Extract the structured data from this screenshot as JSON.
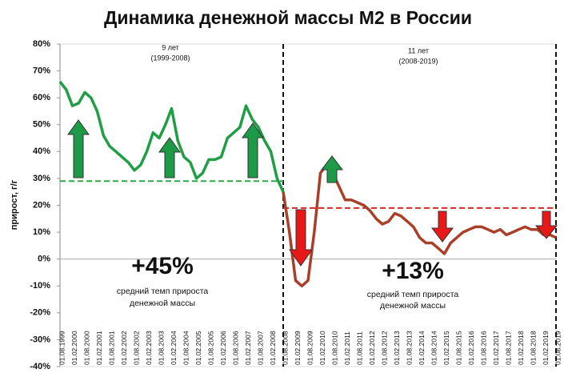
{
  "chart_data": {
    "type": "line",
    "title": "Динамика денежной массы M2 в России",
    "y_label": "прирост, г/г",
    "categories": [
      "01.08.1999",
      null,
      "01.02.2000",
      null,
      "01.08.2000",
      null,
      "01.02.2001",
      null,
      "01.08.2001",
      null,
      "01.02.2002",
      null,
      "01.08.2002",
      null,
      "01.02.2003",
      null,
      "01.08.2003",
      null,
      "01.02.2004",
      null,
      "01.08.2004",
      null,
      "01.02.2005",
      null,
      "01.08.2005",
      null,
      "01.02.2006",
      null,
      "01.08.2006",
      null,
      "01.02.2007",
      null,
      "01.08.2007",
      null,
      "01.02.2008",
      null,
      "01.08.2008",
      null,
      "01.02.2009",
      null,
      "01.08.2009",
      null,
      "01.02.2010",
      null,
      "01.08.2010",
      null,
      "01.02.2011",
      null,
      "01.08.2011",
      null,
      "01.02.2012",
      null,
      "01.08.2012",
      null,
      "01.02.2013",
      null,
      "01.08.2013",
      null,
      "01.02.2014",
      null,
      "01.08.2014",
      null,
      "01.02.2015",
      null,
      "01.08.2015",
      null,
      "01.02.2016",
      null,
      "01.08.2016",
      null,
      "01.02.2017",
      null,
      "01.08.2017",
      null,
      "01.02.2018",
      null,
      "01.08.2018",
      null,
      "01.02.2019",
      null,
      "01.08.2019"
    ],
    "series": [
      {
        "color": "#1f9e45",
        "values": [
          66,
          63,
          57,
          58,
          62,
          60,
          55,
          46,
          42,
          40,
          38,
          36,
          33,
          35,
          40,
          47,
          45,
          50,
          56,
          44,
          38,
          36,
          30,
          32,
          37,
          37,
          38,
          45,
          47,
          49,
          57,
          52,
          49,
          44,
          40,
          30,
          25,
          null,
          null,
          null,
          null,
          null,
          null,
          null,
          null,
          null,
          null,
          null,
          null,
          null,
          null,
          null,
          null,
          null,
          null,
          null,
          null,
          null,
          null,
          null,
          null,
          null,
          null,
          null,
          null,
          null,
          null,
          null,
          null,
          null,
          null,
          null,
          null,
          null,
          null,
          null,
          null,
          null,
          null,
          null,
          null
        ]
      },
      {
        "color": "#a8402a",
        "values": [
          null,
          null,
          null,
          null,
          null,
          null,
          null,
          null,
          null,
          null,
          null,
          null,
          null,
          null,
          null,
          null,
          null,
          null,
          null,
          null,
          null,
          null,
          null,
          null,
          null,
          null,
          null,
          null,
          null,
          null,
          null,
          null,
          null,
          null,
          null,
          null,
          25,
          10,
          -8,
          -10,
          -8,
          10,
          32,
          35,
          32,
          27,
          22,
          22,
          21,
          20,
          18,
          15,
          13,
          14,
          17,
          16,
          14,
          12,
          8,
          6,
          6,
          4,
          2,
          6,
          8,
          10,
          11,
          12,
          12,
          11,
          10,
          11,
          9,
          10,
          11,
          12,
          11,
          11,
          9,
          9,
          8
        ]
      }
    ],
    "ylim": [
      -40,
      80
    ],
    "yticks": [
      {
        "value": -40,
        "label": "-40%"
      },
      {
        "value": -30,
        "label": "-30%"
      },
      {
        "value": -20,
        "label": "-20%"
      },
      {
        "value": -10,
        "label": "-10%"
      },
      {
        "value": 0,
        "label": "0%"
      },
      {
        "value": 10,
        "label": "10%"
      },
      {
        "value": 20,
        "label": "20%"
      },
      {
        "value": 30,
        "label": "30%"
      },
      {
        "value": 40,
        "label": "40%"
      },
      {
        "value": 50,
        "label": "50%"
      },
      {
        "value": 60,
        "label": "60%"
      },
      {
        "value": 70,
        "label": "70%"
      },
      {
        "value": 80,
        "label": "80%"
      }
    ],
    "reference_lines": [
      {
        "value": 29,
        "color": "#2aa84a"
      },
      {
        "value": 19,
        "color": "#e02424"
      }
    ],
    "vlines": [
      "01.08.2008",
      "01.08.2019"
    ],
    "annotations": {
      "left_period": "9 лет",
      "left_years": "(1999-2008)",
      "right_period": "11 лет",
      "right_years": "(2008-2019)",
      "left_value": "+45%",
      "left_note_1": "средний темп прироста",
      "left_note_2": "денежной массы",
      "right_value": "+13%",
      "right_note_1": "средний темп прироста",
      "right_note_2": "денежной массы"
    }
  }
}
